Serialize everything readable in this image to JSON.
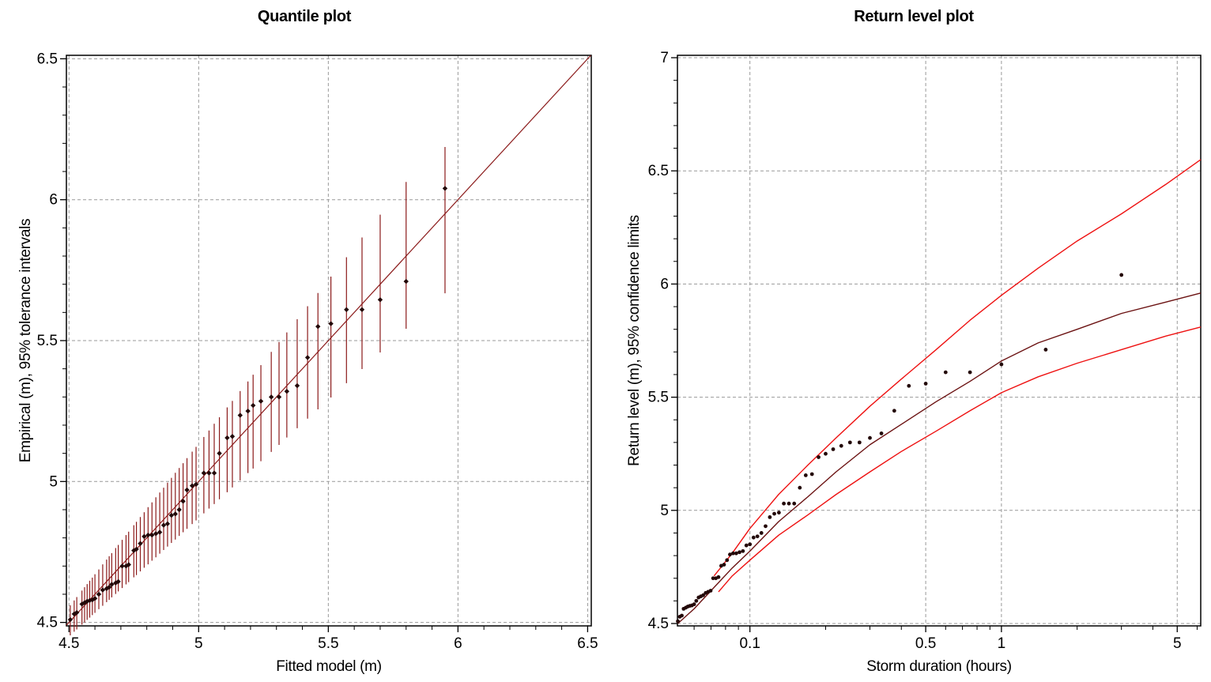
{
  "colors": {
    "background": "#ffffff",
    "dark_red": "#8b1a1a",
    "center_curve_red": "#6b1212",
    "bright_red": "#ee1111",
    "marker": "#230808",
    "grid": "#999999",
    "axis": "#000000",
    "text": "#000000"
  },
  "chart_data": [
    {
      "type": "scatter",
      "title": "Quantile plot",
      "xlabel": "Fitted model (m)",
      "ylabel": "Empirical (m), 95% tolerance intervals",
      "xlim": [
        4.49,
        6.514
      ],
      "ylim": [
        4.4877,
        6.5123
      ],
      "xticks": [
        4.5,
        5,
        5.5,
        6,
        6.5
      ],
      "xtick_labels": [
        "4.5",
        "5",
        "5.5",
        "6",
        "6.5"
      ],
      "yticks": [
        4.5,
        5,
        5.5,
        6,
        6.5
      ],
      "ytick_labels": [
        "4.5",
        "5",
        "5.5",
        "6",
        "6.5"
      ],
      "xminor_step": 0.1,
      "yminor_step": 0.1,
      "grid": "dashed",
      "reference_line": {
        "x": [
          4.49,
          6.512
        ],
        "y": [
          4.49,
          6.512
        ]
      },
      "points_format": "x, y, tolerance_lo, tolerance_hi",
      "points_xylohi": [
        [
          4.505,
          4.51,
          4.454,
          4.561
        ],
        [
          4.52,
          4.53,
          4.467,
          4.578
        ],
        [
          4.53,
          4.535,
          4.475,
          4.59
        ],
        [
          4.55,
          4.565,
          4.492,
          4.613
        ],
        [
          4.56,
          4.57,
          4.5,
          4.625
        ],
        [
          4.57,
          4.575,
          4.509,
          4.636
        ],
        [
          4.58,
          4.578,
          4.517,
          4.648
        ],
        [
          4.59,
          4.58,
          4.526,
          4.659
        ],
        [
          4.6,
          4.585,
          4.534,
          4.671
        ],
        [
          4.615,
          4.6,
          4.547,
          4.688
        ],
        [
          4.63,
          4.615,
          4.559,
          4.706
        ],
        [
          4.645,
          4.62,
          4.572,
          4.723
        ],
        [
          4.655,
          4.625,
          4.58,
          4.735
        ],
        [
          4.665,
          4.635,
          4.589,
          4.746
        ],
        [
          4.68,
          4.64,
          4.601,
          4.764
        ],
        [
          4.69,
          4.645,
          4.61,
          4.775
        ],
        [
          4.705,
          4.7,
          4.622,
          4.793
        ],
        [
          4.72,
          4.7,
          4.635,
          4.81
        ],
        [
          4.73,
          4.705,
          4.643,
          4.822
        ],
        [
          4.75,
          4.755,
          4.66,
          4.845
        ],
        [
          4.76,
          4.76,
          4.668,
          4.857
        ],
        [
          4.775,
          4.78,
          4.681,
          4.874
        ],
        [
          4.79,
          4.805,
          4.694,
          4.891
        ],
        [
          4.805,
          4.81,
          4.706,
          4.909
        ],
        [
          4.82,
          4.81,
          4.719,
          4.926
        ],
        [
          4.835,
          4.815,
          4.731,
          4.944
        ],
        [
          4.85,
          4.82,
          4.744,
          4.961
        ],
        [
          4.865,
          4.845,
          4.757,
          4.978
        ],
        [
          4.88,
          4.85,
          4.769,
          4.996
        ],
        [
          4.895,
          4.88,
          4.782,
          5.013
        ],
        [
          4.91,
          4.885,
          4.794,
          5.031
        ],
        [
          4.925,
          4.9,
          4.807,
          5.048
        ],
        [
          4.94,
          4.93,
          4.82,
          5.065
        ],
        [
          4.955,
          4.97,
          4.832,
          5.083
        ],
        [
          4.975,
          4.985,
          4.849,
          5.106
        ],
        [
          4.99,
          4.99,
          4.862,
          5.123
        ],
        [
          5.02,
          5.03,
          4.887,
          5.158
        ],
        [
          5.04,
          5.03,
          4.904,
          5.181
        ],
        [
          5.06,
          5.03,
          4.92,
          5.205
        ],
        [
          5.08,
          5.1,
          4.937,
          5.228
        ],
        [
          5.11,
          5.155,
          4.962,
          5.263
        ],
        [
          5.13,
          5.16,
          4.979,
          5.286
        ],
        [
          5.16,
          5.235,
          5.004,
          5.321
        ],
        [
          5.19,
          5.25,
          5.03,
          5.355
        ],
        [
          5.21,
          5.27,
          5.046,
          5.379
        ],
        [
          5.24,
          5.285,
          5.072,
          5.413
        ],
        [
          5.28,
          5.3,
          5.105,
          5.46
        ],
        [
          5.31,
          5.3,
          5.13,
          5.495
        ],
        [
          5.34,
          5.32,
          5.156,
          5.529
        ],
        [
          5.38,
          5.34,
          5.189,
          5.576
        ],
        [
          5.42,
          5.44,
          5.223,
          5.622
        ],
        [
          5.46,
          5.55,
          5.256,
          5.669
        ],
        [
          5.51,
          5.56,
          5.298,
          5.727
        ],
        [
          5.57,
          5.61,
          5.349,
          5.796
        ],
        [
          5.63,
          5.61,
          5.399,
          5.866
        ],
        [
          5.7,
          5.645,
          5.458,
          5.947
        ],
        [
          5.8,
          5.71,
          5.542,
          6.063
        ],
        [
          5.95,
          6.04,
          5.668,
          6.187
        ]
      ]
    },
    {
      "type": "scatter",
      "title": "Return level plot",
      "xlabel": "Storm duration (hours)",
      "ylabel": "Return level (m), 95% confidence limits",
      "xscale": "log",
      "xlim": [
        0.0515,
        6.2
      ],
      "ylim": [
        4.4895,
        7.0105
      ],
      "xticks": [
        0.1,
        0.5,
        1,
        5
      ],
      "xtick_labels": [
        "0.1",
        "0.5",
        "1",
        "5"
      ],
      "xminor_ticks": [
        0.06,
        0.07,
        0.08,
        0.09,
        0.2,
        0.3,
        0.4,
        0.6,
        0.7,
        0.8,
        0.9,
        2,
        3,
        4,
        6
      ],
      "yticks": [
        4.5,
        5,
        5.5,
        6,
        6.5,
        7
      ],
      "ytick_labels": [
        "4.5",
        "5",
        "5.5",
        "6",
        "6.5",
        "7"
      ],
      "yminor_step": 0.1,
      "grid": "dashed",
      "points_format": "storm_duration_hours, return_level_m",
      "points_xy": [
        [
          0.0517,
          4.51
        ],
        [
          0.0526,
          4.53
        ],
        [
          0.0536,
          4.535
        ],
        [
          0.0545,
          4.565
        ],
        [
          0.0556,
          4.57
        ],
        [
          0.0566,
          4.575
        ],
        [
          0.0577,
          4.578
        ],
        [
          0.0588,
          4.58
        ],
        [
          0.06,
          4.585
        ],
        [
          0.0612,
          4.6
        ],
        [
          0.0625,
          4.615
        ],
        [
          0.0638,
          4.62
        ],
        [
          0.0652,
          4.625
        ],
        [
          0.0667,
          4.635
        ],
        [
          0.0682,
          4.64
        ],
        [
          0.0698,
          4.645
        ],
        [
          0.0714,
          4.7
        ],
        [
          0.0732,
          4.7
        ],
        [
          0.075,
          4.705
        ],
        [
          0.0769,
          4.755
        ],
        [
          0.0789,
          4.76
        ],
        [
          0.0811,
          4.78
        ],
        [
          0.0833,
          4.805
        ],
        [
          0.0857,
          4.81
        ],
        [
          0.0882,
          4.81
        ],
        [
          0.0909,
          4.815
        ],
        [
          0.0938,
          4.82
        ],
        [
          0.0968,
          4.845
        ],
        [
          0.1,
          4.85
        ],
        [
          0.1034,
          4.88
        ],
        [
          0.1071,
          4.885
        ],
        [
          0.1111,
          4.9
        ],
        [
          0.1154,
          4.93
        ],
        [
          0.12,
          4.97
        ],
        [
          0.125,
          4.985
        ],
        [
          0.1304,
          4.99
        ],
        [
          0.1364,
          5.03
        ],
        [
          0.1429,
          5.03
        ],
        [
          0.15,
          5.03
        ],
        [
          0.1579,
          5.1
        ],
        [
          0.1667,
          5.155
        ],
        [
          0.1765,
          5.16
        ],
        [
          0.1875,
          5.235
        ],
        [
          0.2,
          5.25
        ],
        [
          0.2143,
          5.27
        ],
        [
          0.2308,
          5.285
        ],
        [
          0.25,
          5.3
        ],
        [
          0.2727,
          5.3
        ],
        [
          0.3,
          5.32
        ],
        [
          0.3333,
          5.34
        ],
        [
          0.375,
          5.44
        ],
        [
          0.4286,
          5.55
        ],
        [
          0.5,
          5.56
        ],
        [
          0.6,
          5.61
        ],
        [
          0.75,
          5.61
        ],
        [
          1.0,
          5.645
        ],
        [
          1.5,
          5.71
        ],
        [
          3.0,
          6.04
        ]
      ],
      "curves": {
        "center": {
          "name": "fitted return level",
          "x": [
            0.0517,
            0.06,
            0.07,
            0.085,
            0.1,
            0.13,
            0.17,
            0.22,
            0.3,
            0.4,
            0.55,
            0.75,
            1.0,
            1.4,
            2.0,
            3.0,
            4.5,
            6.2
          ],
          "y": [
            4.5,
            4.565,
            4.645,
            4.745,
            4.82,
            4.95,
            5.06,
            5.17,
            5.29,
            5.38,
            5.48,
            5.57,
            5.66,
            5.74,
            5.8,
            5.87,
            5.92,
            5.96
          ]
        },
        "upper": {
          "name": "upper 95% confidence limit",
          "x": [
            0.072,
            0.085,
            0.1,
            0.13,
            0.17,
            0.22,
            0.3,
            0.4,
            0.55,
            0.75,
            1.0,
            1.4,
            2.0,
            3.0,
            4.5,
            6.2
          ],
          "y": [
            4.71,
            4.81,
            4.92,
            5.07,
            5.2,
            5.32,
            5.46,
            5.58,
            5.71,
            5.84,
            5.95,
            6.07,
            6.19,
            6.31,
            6.44,
            6.55
          ]
        },
        "lower": {
          "name": "lower 95% confidence limit",
          "x": [
            0.075,
            0.085,
            0.1,
            0.13,
            0.17,
            0.22,
            0.3,
            0.4,
            0.55,
            0.75,
            1.0,
            1.4,
            2.0,
            3.0,
            4.5,
            6.2
          ],
          "y": [
            4.64,
            4.71,
            4.78,
            4.89,
            4.98,
            5.07,
            5.17,
            5.26,
            5.35,
            5.44,
            5.52,
            5.59,
            5.65,
            5.71,
            5.77,
            5.81
          ]
        }
      }
    }
  ]
}
